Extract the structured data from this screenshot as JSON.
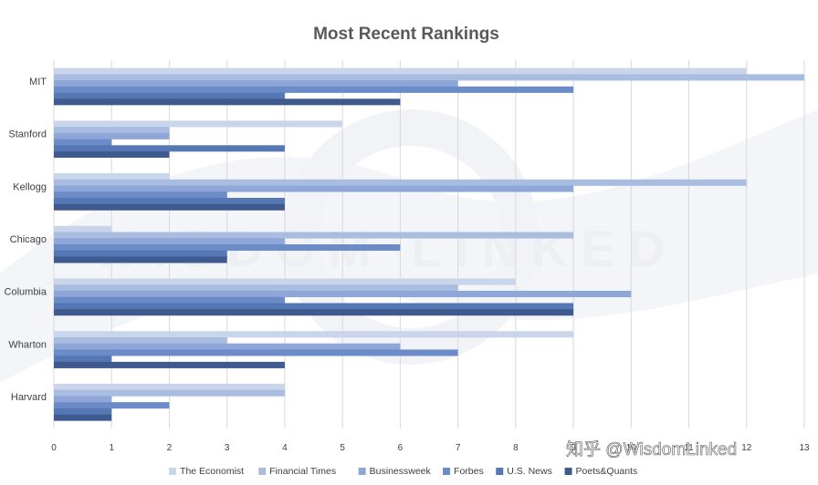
{
  "chart_data": {
    "type": "bar",
    "orientation": "horizontal",
    "title": "Most Recent Rankings",
    "categories": [
      "MIT",
      "Stanford",
      "Kellogg",
      "Chicago",
      "Columbia",
      "Wharton",
      "Harvard"
    ],
    "series": [
      {
        "name": "The Economist",
        "color": "#c9d5ea",
        "values": [
          12,
          5,
          2,
          1,
          8,
          9,
          4
        ]
      },
      {
        "name": "Financial Times",
        "color": "#a9bde0",
        "values": [
          13,
          2,
          12,
          9,
          7,
          3,
          4
        ]
      },
      {
        "name": "Businessweek",
        "color": "#8ea7d8",
        "values": [
          7,
          2,
          9,
          4,
          10,
          6,
          1
        ]
      },
      {
        "name": "Forbes",
        "color": "#6b8cc8",
        "values": [
          9,
          1,
          3,
          6,
          4,
          7,
          2
        ]
      },
      {
        "name": "U.S. News",
        "color": "#5577b4",
        "values": [
          4,
          4,
          4,
          3,
          9,
          1,
          1
        ]
      },
      {
        "name": "Poets&Quants",
        "color": "#3e5a8f",
        "values": [
          6,
          2,
          4,
          3,
          9,
          4,
          1
        ]
      }
    ],
    "xticks": [
      "0",
      "1",
      "2",
      "3",
      "4",
      "5",
      "6",
      "7",
      "8",
      "9",
      "10",
      "11",
      "12",
      "13"
    ],
    "xlim": [
      0,
      13
    ],
    "grid": true,
    "legend_position": "bottom"
  },
  "watermark": {
    "background_text": "WISDOM LINKED",
    "overlay_text": "知乎 @WisdomLinked"
  }
}
